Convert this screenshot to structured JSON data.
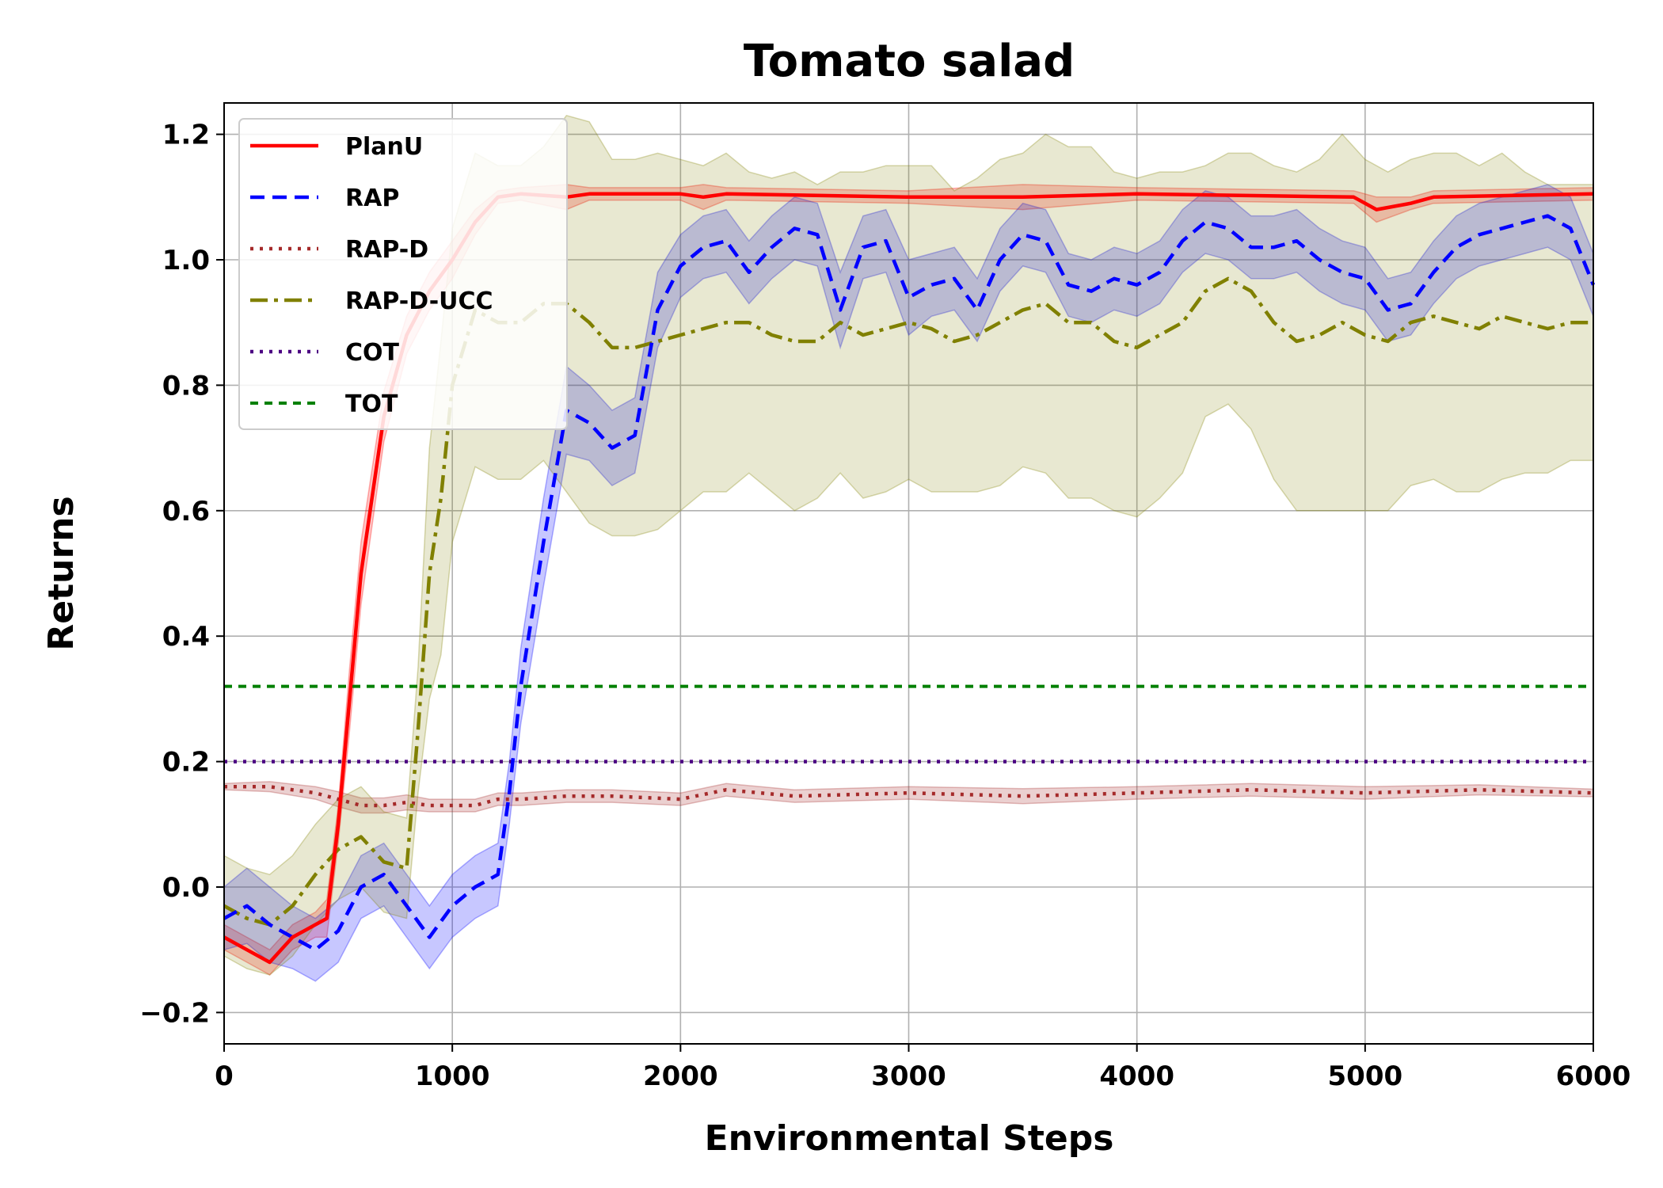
{
  "chart_data": {
    "type": "line",
    "title": "Tomato salad",
    "xlabel": "Environmental Steps",
    "ylabel": "Returns",
    "xlim": [
      0,
      6000
    ],
    "ylim": [
      -0.25,
      1.25
    ],
    "xticks": [
      0,
      1000,
      2000,
      3000,
      4000,
      5000,
      6000
    ],
    "xtick_labels": [
      "0",
      "1000",
      "2000",
      "3000",
      "4000",
      "5000",
      "6000"
    ],
    "yticks": [
      -0.2,
      0.0,
      0.2,
      0.4,
      0.6,
      0.8,
      1.0,
      1.2
    ],
    "ytick_labels": [
      "−0.2",
      "0.0",
      "0.2",
      "0.4",
      "0.6",
      "0.8",
      "1.0",
      "1.2"
    ],
    "grid": true,
    "legend_position": "top-left",
    "series": [
      {
        "name": "PlanU",
        "color": "#ff0000",
        "style": "solid",
        "x": [
          0,
          100,
          200,
          300,
          400,
          450,
          500,
          550,
          600,
          700,
          800,
          900,
          1000,
          1100,
          1200,
          1300,
          1500,
          1600,
          1700,
          2000,
          2100,
          2200,
          3000,
          3500,
          4000,
          4950,
          5050,
          5200,
          5300,
          6000
        ],
        "y": [
          -0.08,
          -0.1,
          -0.12,
          -0.08,
          -0.06,
          -0.05,
          0.1,
          0.3,
          0.5,
          0.75,
          0.88,
          0.95,
          1.0,
          1.06,
          1.1,
          1.105,
          1.1,
          1.105,
          1.105,
          1.105,
          1.1,
          1.105,
          1.1,
          1.1,
          1.105,
          1.1,
          1.08,
          1.09,
          1.1,
          1.105
        ],
        "band": [
          0.02,
          0.02,
          0.02,
          0.02,
          0.02,
          0.03,
          0.03,
          0.05,
          0.05,
          0.04,
          0.03,
          0.03,
          0.03,
          0.02,
          0.01,
          0.01,
          0.02,
          0.01,
          0.01,
          0.01,
          0.02,
          0.01,
          0.01,
          0.02,
          0.01,
          0.01,
          0.02,
          0.01,
          0.01,
          0.01
        ]
      },
      {
        "name": "RAP",
        "color": "#0000ff",
        "style": "dashed",
        "x": [
          0,
          100,
          200,
          300,
          400,
          500,
          600,
          700,
          800,
          900,
          1000,
          1100,
          1200,
          1250,
          1300,
          1400,
          1500,
          1600,
          1700,
          1800,
          1900,
          2000,
          2100,
          2200,
          2300,
          2400,
          2500,
          2600,
          2700,
          2800,
          2900,
          3000,
          3100,
          3200,
          3300,
          3400,
          3500,
          3600,
          3700,
          3800,
          3900,
          4000,
          4100,
          4200,
          4300,
          4400,
          4500,
          4600,
          4700,
          4800,
          4900,
          5000,
          5100,
          5200,
          5300,
          5400,
          5500,
          5600,
          5700,
          5800,
          5900,
          6000
        ],
        "y": [
          -0.05,
          -0.03,
          -0.06,
          -0.08,
          -0.1,
          -0.07,
          0.0,
          0.02,
          -0.03,
          -0.08,
          -0.03,
          0.0,
          0.02,
          0.15,
          0.32,
          0.55,
          0.76,
          0.74,
          0.7,
          0.72,
          0.92,
          0.99,
          1.02,
          1.03,
          0.98,
          1.02,
          1.05,
          1.04,
          0.92,
          1.02,
          1.03,
          0.94,
          0.96,
          0.97,
          0.92,
          1.0,
          1.04,
          1.03,
          0.96,
          0.95,
          0.97,
          0.96,
          0.98,
          1.03,
          1.06,
          1.05,
          1.02,
          1.02,
          1.03,
          1.0,
          0.98,
          0.97,
          0.92,
          0.93,
          0.98,
          1.02,
          1.04,
          1.05,
          1.06,
          1.07,
          1.05,
          0.96
        ],
        "band": [
          0.05,
          0.06,
          0.06,
          0.05,
          0.05,
          0.05,
          0.05,
          0.05,
          0.05,
          0.05,
          0.05,
          0.05,
          0.05,
          0.05,
          0.06,
          0.07,
          0.07,
          0.06,
          0.06,
          0.06,
          0.06,
          0.05,
          0.05,
          0.05,
          0.05,
          0.05,
          0.05,
          0.05,
          0.06,
          0.05,
          0.05,
          0.06,
          0.05,
          0.05,
          0.05,
          0.05,
          0.05,
          0.05,
          0.05,
          0.05,
          0.05,
          0.05,
          0.05,
          0.05,
          0.05,
          0.05,
          0.05,
          0.05,
          0.05,
          0.05,
          0.05,
          0.05,
          0.05,
          0.05,
          0.05,
          0.05,
          0.05,
          0.05,
          0.05,
          0.05,
          0.05,
          0.05
        ]
      },
      {
        "name": "RAP-D",
        "color": "#a52a2a",
        "style": "dotted",
        "x": [
          0,
          200,
          400,
          500,
          600,
          700,
          800,
          900,
          1000,
          1100,
          1200,
          1300,
          1500,
          1700,
          2000,
          2200,
          2500,
          3000,
          3500,
          4000,
          4500,
          5000,
          5500,
          6000
        ],
        "y": [
          0.16,
          0.16,
          0.15,
          0.14,
          0.13,
          0.13,
          0.135,
          0.13,
          0.13,
          0.13,
          0.14,
          0.14,
          0.145,
          0.145,
          0.14,
          0.155,
          0.145,
          0.15,
          0.145,
          0.15,
          0.155,
          0.15,
          0.155,
          0.15
        ],
        "band": [
          0.005,
          0.008,
          0.01,
          0.012,
          0.012,
          0.012,
          0.012,
          0.01,
          0.01,
          0.01,
          0.01,
          0.01,
          0.01,
          0.01,
          0.01,
          0.01,
          0.01,
          0.01,
          0.012,
          0.01,
          0.01,
          0.01,
          0.008,
          0.006
        ]
      },
      {
        "name": "RAP-D-UCC",
        "color": "#808000",
        "style": "dashdot",
        "x": [
          0,
          100,
          200,
          300,
          400,
          500,
          600,
          700,
          800,
          850,
          900,
          950,
          1000,
          1100,
          1200,
          1300,
          1400,
          1500,
          1600,
          1700,
          1800,
          1900,
          2000,
          2100,
          2200,
          2300,
          2400,
          2500,
          2600,
          2700,
          2800,
          2900,
          3000,
          3100,
          3200,
          3300,
          3400,
          3500,
          3600,
          3700,
          3800,
          3900,
          4000,
          4100,
          4200,
          4300,
          4400,
          4500,
          4600,
          4700,
          4800,
          4900,
          5000,
          5100,
          5200,
          5300,
          5400,
          5500,
          5600,
          5700,
          5800,
          5900,
          6000
        ],
        "y": [
          -0.03,
          -0.05,
          -0.06,
          -0.03,
          0.02,
          0.06,
          0.08,
          0.04,
          0.03,
          0.25,
          0.5,
          0.62,
          0.8,
          0.92,
          0.9,
          0.9,
          0.93,
          0.93,
          0.9,
          0.86,
          0.86,
          0.87,
          0.88,
          0.89,
          0.9,
          0.9,
          0.88,
          0.87,
          0.87,
          0.9,
          0.88,
          0.89,
          0.9,
          0.89,
          0.87,
          0.88,
          0.9,
          0.92,
          0.93,
          0.9,
          0.9,
          0.87,
          0.86,
          0.88,
          0.9,
          0.95,
          0.97,
          0.95,
          0.9,
          0.87,
          0.88,
          0.9,
          0.88,
          0.87,
          0.9,
          0.91,
          0.9,
          0.89,
          0.91,
          0.9,
          0.89,
          0.9,
          0.9
        ],
        "band": [
          0.08,
          0.08,
          0.08,
          0.08,
          0.08,
          0.08,
          0.08,
          0.08,
          0.08,
          0.1,
          0.2,
          0.25,
          0.25,
          0.25,
          0.25,
          0.25,
          0.25,
          0.3,
          0.32,
          0.3,
          0.3,
          0.3,
          0.28,
          0.26,
          0.27,
          0.24,
          0.25,
          0.27,
          0.25,
          0.24,
          0.26,
          0.26,
          0.25,
          0.26,
          0.24,
          0.25,
          0.26,
          0.25,
          0.27,
          0.28,
          0.28,
          0.27,
          0.27,
          0.26,
          0.24,
          0.2,
          0.2,
          0.22,
          0.25,
          0.27,
          0.28,
          0.3,
          0.28,
          0.27,
          0.26,
          0.26,
          0.27,
          0.26,
          0.26,
          0.24,
          0.23,
          0.22,
          0.22
        ]
      },
      {
        "name": "COT",
        "color": "#4b0082",
        "style": "dotted",
        "x": [
          0,
          6000
        ],
        "y": [
          0.2,
          0.2
        ]
      },
      {
        "name": "TOT",
        "color": "#008000",
        "style": "dashed-fine",
        "x": [
          0,
          6000
        ],
        "y": [
          0.32,
          0.32
        ]
      }
    ]
  }
}
